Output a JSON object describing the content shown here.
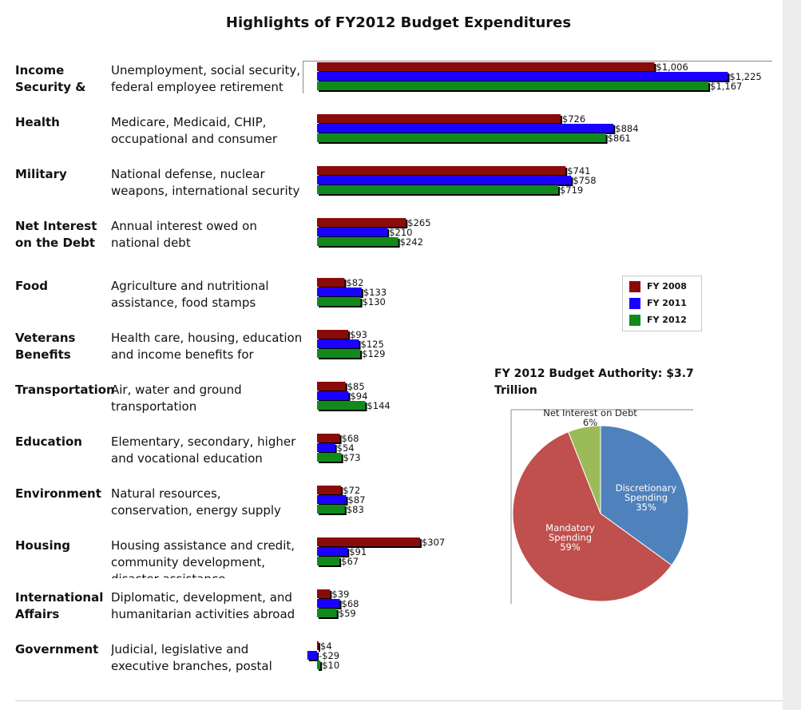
{
  "title": "Highlights of FY2012 Budget Expenditures",
  "colors": {
    "fy2008": "#8b0a0a",
    "fy2011": "#1a00ff",
    "fy2012": "#118a1b",
    "shadow": "#000000"
  },
  "rows": [
    {
      "category": "Income Security & Labor",
      "description": "Unemployment, social security, federal employee retirement and disability, job training"
    },
    {
      "category": "Health",
      "description": "Medicare, Medicaid, CHIP, occupational and consumer health & safety"
    },
    {
      "category": "Military",
      "description": "National defense, nuclear weapons, international security"
    },
    {
      "category": "Net Interest on the Debt",
      "description": "Annual interest owed on national debt"
    },
    {
      "category": "Food",
      "description": "Agriculture and nutritional assistance, food stamps"
    },
    {
      "category": "Veterans Benefits",
      "description": "Health care, housing, education and income benefits for veterans"
    },
    {
      "category": "Transportation",
      "description": "Air, water and ground transportation"
    },
    {
      "category": "Education",
      "description": "Elementary, secondary, higher and vocational education"
    },
    {
      "category": "Environment",
      "description": "Natural resources, conservation, energy supply and use, science"
    },
    {
      "category": "Housing",
      "description": "Housing assistance and credit, community development, disaster assistance"
    },
    {
      "category": "International Affairs",
      "description": "Diplomatic, development, and humanitarian activities abroad"
    },
    {
      "category": "Government",
      "description": "Judicial, legislative and executive branches, postal service"
    }
  ],
  "legend": {
    "items": [
      "FY 2008",
      "FY 2011",
      "FY 2012"
    ]
  },
  "pie_title": "FY 2012 Budget Authority: $3.7 Trillion",
  "chart_data": [
    {
      "type": "bar",
      "orientation": "horizontal",
      "categories": [
        "Income Security & Labor",
        "Health",
        "Military",
        "Net Interest on the Debt",
        "Food",
        "Veterans Benefits",
        "Transportation",
        "Education",
        "Environment",
        "Housing",
        "International Affairs",
        "Government"
      ],
      "series": [
        {
          "name": "FY 2008",
          "values": [
            1006,
            726,
            741,
            265,
            82,
            93,
            85,
            68,
            72,
            307,
            39,
            4
          ],
          "labels": [
            "$1,006",
            "$726",
            "$741",
            "$265",
            "$82",
            "$93",
            "$85",
            "$68",
            "$72",
            "$307",
            "$39",
            "$4"
          ]
        },
        {
          "name": "FY 2011",
          "values": [
            1225,
            884,
            758,
            210,
            133,
            125,
            94,
            54,
            87,
            91,
            68,
            -29
          ],
          "labels": [
            "$1,225",
            "$884",
            "$758",
            "$210",
            "$133",
            "$125",
            "$94",
            "$54",
            "$87",
            "$91",
            "$68",
            "-$29"
          ]
        },
        {
          "name": "FY 2012",
          "values": [
            1167,
            861,
            719,
            242,
            130,
            129,
            144,
            73,
            83,
            67,
            59,
            10
          ],
          "labels": [
            "$1,167",
            "$861",
            "$719",
            "$242",
            "$130",
            "$129",
            "$144",
            "$73",
            "$83",
            "$67",
            "$59",
            "$10"
          ]
        }
      ],
      "legend_position": "right",
      "grid": false
    },
    {
      "type": "pie",
      "slices": [
        {
          "label": "Discretionary Spending",
          "percent_label": "35%",
          "value": 35,
          "color": "#4f81bd"
        },
        {
          "label": "Mandatory Spending",
          "percent_label": "59%",
          "value": 59,
          "color": "#c0504d"
        },
        {
          "label": "Net Interest on Debt",
          "percent_label": "6%",
          "value": 6,
          "color": "#9bbb59"
        }
      ]
    }
  ]
}
